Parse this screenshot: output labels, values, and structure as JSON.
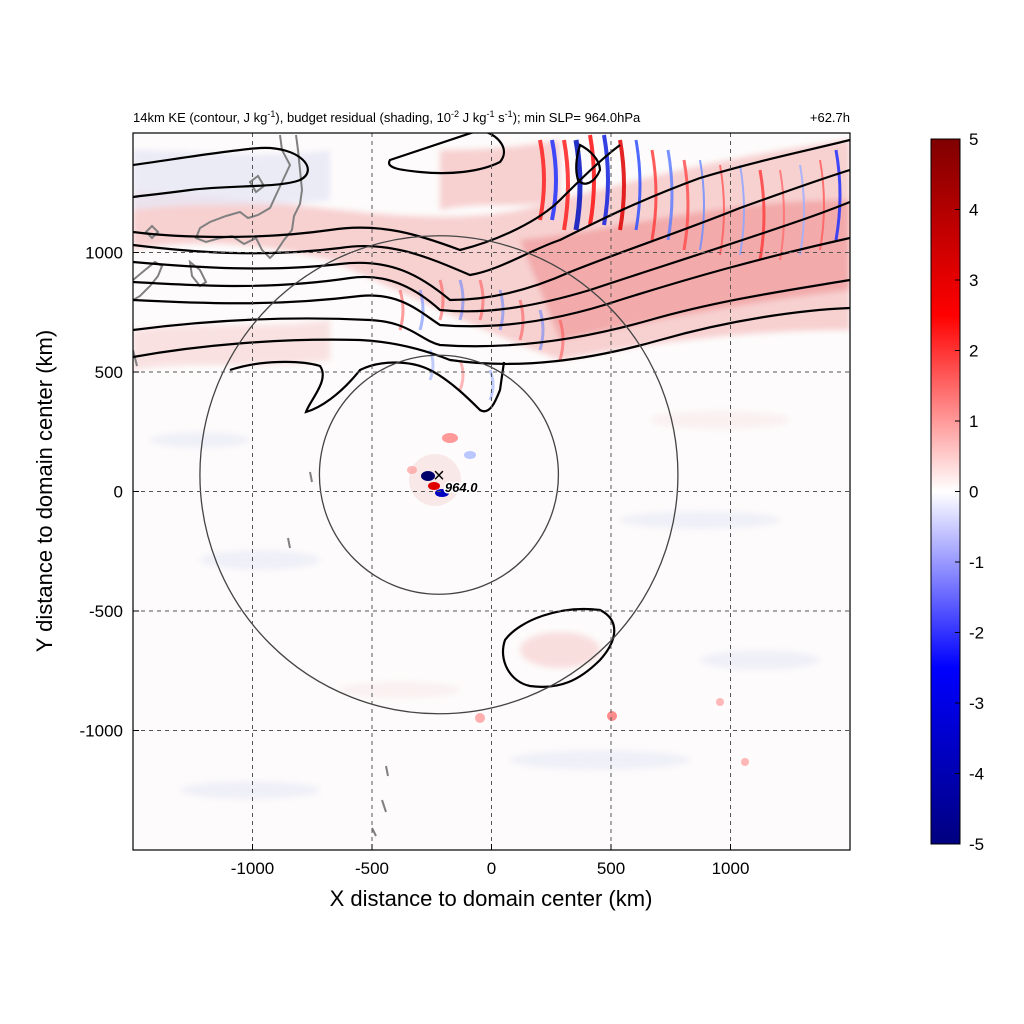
{
  "chart_data": {
    "type": "heatmap",
    "title_left_parts": {
      "p1": "14km KE (contour, J kg",
      "p1_sup": "-1",
      "p2": "), budget residual (shading, 10",
      "p2_sup": "-2",
      "p3": " J kg",
      "p3_sup": "-1",
      "p4": " s",
      "p4_sup": "-1",
      "p5": "); min SLP= 964.0hPa"
    },
    "title_right": "+62.7h",
    "xlabel": "X distance to domain center (km)",
    "ylabel": "Y distance to domain center (km)",
    "xlim": [
      -1500,
      1500
    ],
    "ylim": [
      -1500,
      1500
    ],
    "x_ticks": [
      -1000,
      -500,
      0,
      500,
      1000
    ],
    "y_ticks": [
      1000,
      500,
      0,
      -500,
      -1000
    ],
    "x_tick_labels": [
      "-1000",
      "-500",
      "0",
      "500",
      "1000"
    ],
    "y_tick_labels": [
      "1000",
      "500",
      "0",
      "-500",
      "-1000"
    ],
    "grid": "dashed at ticks",
    "colorbar": {
      "range": [
        -5,
        5
      ],
      "colors": [
        "#00007f",
        "#0000ff",
        "#ffffff",
        "#ff0000",
        "#7f0000"
      ],
      "ticks": [
        "5",
        "4",
        "3",
        "2",
        "1",
        "0",
        "-1",
        "-2",
        "-3",
        "-4",
        "-5"
      ]
    },
    "storm_center": {
      "x": -220,
      "y": 70,
      "marker": "×",
      "label": "964.0"
    },
    "circles": [
      {
        "center_x": -220,
        "center_y": 70,
        "radius": 500
      },
      {
        "center_x": -220,
        "center_y": 70,
        "radius": 1000
      }
    ],
    "colors": {
      "positive": "#ff0000",
      "negative": "#0000ff",
      "contour": "#000000",
      "coastline": "#808080"
    }
  }
}
